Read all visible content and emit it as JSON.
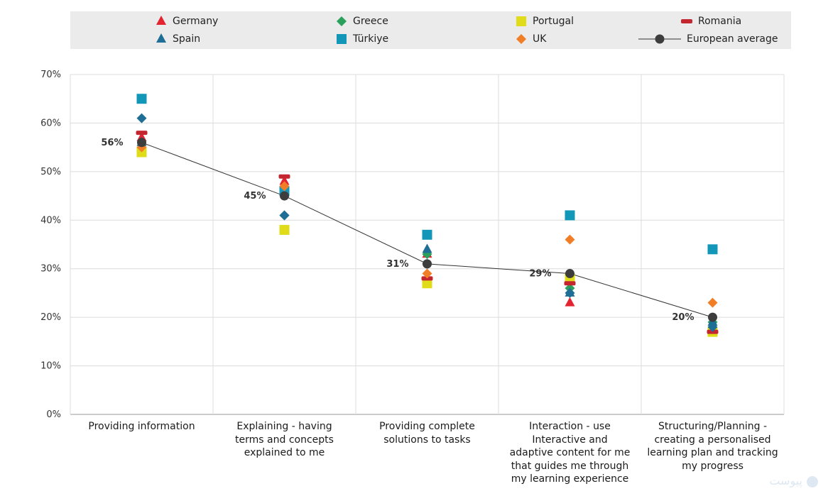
{
  "colors": {
    "Germany": "#e3232f",
    "Spain": "#1e6e96",
    "Greece": "#2aa05c",
    "Türkiye": "#1397b8",
    "Portugal": "#e0dc1a",
    "UK": "#f07e26",
    "Romania": "#c42630",
    "European average": "#3d3d3d"
  },
  "watermark": "پیوست",
  "chart_data": {
    "type": "scatter",
    "categories": [
      [
        "Providing information"
      ],
      [
        "Explaining - having",
        "terms and concepts",
        "explained to me"
      ],
      [
        "Providing complete",
        "solutions to tasks"
      ],
      [
        "Interaction - use",
        "Interactive and",
        "adaptive content for me",
        "that guides me through",
        "my learning experience"
      ],
      [
        "Structuring/Planning -",
        "creating a personalised",
        "learning plan and tracking",
        "my progress"
      ]
    ],
    "ylim": [
      0,
      70
    ],
    "yticks": [
      "0%",
      "10%",
      "20%",
      "30%",
      "40%",
      "50%",
      "60%",
      "70%"
    ],
    "grid": true,
    "legend_position": "top",
    "series": [
      {
        "name": "Germany",
        "marker": "triangle",
        "values": [
          57,
          48,
          33,
          23,
          18
        ]
      },
      {
        "name": "Greece",
        "marker": "diamond",
        "values": [
          55,
          41,
          33,
          26,
          19
        ]
      },
      {
        "name": "Portugal",
        "marker": "square",
        "values": [
          54,
          38,
          27,
          28,
          17
        ]
      },
      {
        "name": "Romania",
        "marker": "dash",
        "values": [
          58,
          49,
          28,
          27,
          17
        ]
      },
      {
        "name": "Spain",
        "marker": "triangle",
        "values": [
          56,
          46,
          34,
          25,
          19
        ]
      },
      {
        "name": "Türkiye",
        "marker": "square",
        "values": [
          65,
          46,
          37,
          41,
          34
        ]
      },
      {
        "name": "UK",
        "marker": "diamond",
        "values": [
          55,
          47,
          29,
          36,
          23
        ]
      },
      {
        "name": "Spain",
        "marker": "diamond",
        "values": [
          61,
          41,
          31,
          25,
          18
        ],
        "legend": false
      },
      {
        "name": "European average",
        "marker": "circle-line",
        "values": [
          56,
          45,
          31,
          29,
          20
        ],
        "labels": [
          "56%",
          "45%",
          "31%",
          "29%",
          "20%"
        ]
      }
    ]
  }
}
